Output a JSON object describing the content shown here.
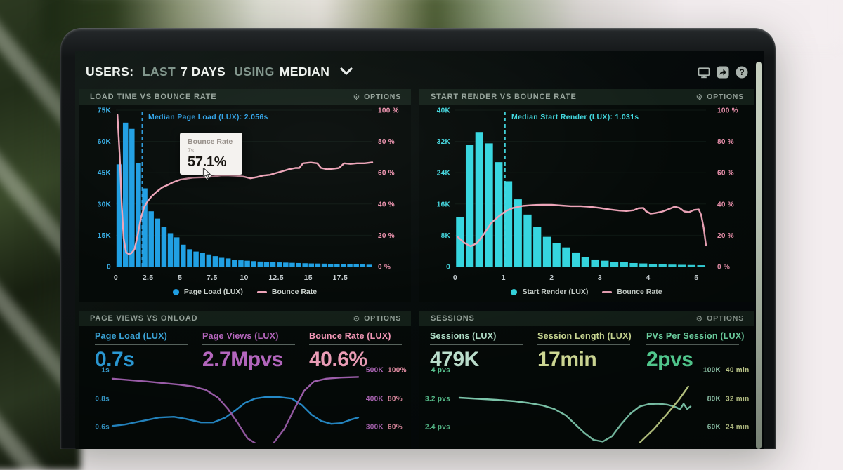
{
  "ui": {
    "options": "OPTIONS"
  },
  "header": {
    "users": "USERS:",
    "range_dim": "LAST",
    "range_bold": "7 DAYS",
    "using_dim": "USING",
    "metric_bold": "MEDIAN",
    "icons": [
      "display-icon",
      "share-icon",
      "help-icon"
    ]
  },
  "tooltip": {
    "label": "Bounce Rate",
    "time": "7s",
    "value": "57.1%"
  },
  "panels": {
    "page_views": {
      "metrics": [
        {
          "label": "Page Load (LUX)",
          "value": "0.7s",
          "label_color": "#3fb0e8",
          "value_color": "#2fa9ea"
        },
        {
          "label": "Page Views (LUX)",
          "value": "2.7Mpvs",
          "label_color": "#c06cc8",
          "value_color": "#c46fce"
        },
        {
          "label": "Bounce Rate (LUX)",
          "value": "40.6%",
          "label_color": "#ff9fc0",
          "value_color": "#ffaac6"
        }
      ]
    },
    "sessions": {
      "metrics": [
        {
          "label": "Sessions (LUX)",
          "value": "479K",
          "label_color": "#bdeed6",
          "value_color": "#cdf4e0"
        },
        {
          "label": "Session Length (LUX)",
          "value": "17min",
          "label_color": "#dceba0",
          "value_color": "#e7f2a6"
        },
        {
          "label": "PVs Per Session (LUX)",
          "value": "2pvs",
          "label_color": "#7aeab4",
          "value_color": "#5ee8a4"
        }
      ]
    }
  },
  "chart_data": [
    {
      "type": "bar",
      "title": "LOAD TIME VS BOUNCE RATE",
      "x_range": [
        0,
        20
      ],
      "x_ticks": [
        0,
        2.5,
        5,
        7.5,
        10,
        12.5,
        15,
        17.5
      ],
      "x_unit": "seconds",
      "left_axis": {
        "ticks": [
          "75K",
          "60K",
          "45K",
          "30K",
          "15K",
          "0"
        ],
        "max": 75,
        "unit": "K users",
        "color": "#39b0e8"
      },
      "right_axis": {
        "ticks": [
          "100 %",
          "80 %",
          "60 %",
          "40 %",
          "20 %",
          "0 %"
        ],
        "max": 100,
        "color": "#f195b1"
      },
      "bars": {
        "name": "Page Load (LUX)",
        "color": "#1f9fe3",
        "step": 0.5,
        "values_k": [
          49,
          69,
          66,
          49.5,
          37.5,
          26.5,
          23,
          19,
          16,
          14,
          10.5,
          8.3,
          7.2,
          6.4,
          5.8,
          5,
          4.2,
          3.9,
          3.3,
          3,
          2.8,
          2.6,
          2.4,
          2.2,
          2.1,
          2,
          1.9,
          1.8,
          1.7,
          1.6,
          1.5,
          1.45,
          1.4,
          1.3,
          1.25,
          1.2,
          1.1,
          1.05,
          1,
          0.9
        ]
      },
      "line": {
        "name": "Bounce Rate",
        "color": "#eda4b8",
        "points": [
          [
            0.12,
            97
          ],
          [
            0.3,
            70
          ],
          [
            0.45,
            40
          ],
          [
            0.6,
            18
          ],
          [
            0.8,
            9
          ],
          [
            1,
            8
          ],
          [
            1.2,
            8.5
          ],
          [
            1.45,
            11
          ],
          [
            1.7,
            20
          ],
          [
            1.95,
            31
          ],
          [
            2.2,
            38
          ],
          [
            2.5,
            42
          ],
          [
            2.8,
            45
          ],
          [
            3.2,
            48
          ],
          [
            3.6,
            50.5
          ],
          [
            4,
            52
          ],
          [
            4.5,
            54
          ],
          [
            5,
            55.5
          ],
          [
            5.5,
            56.2
          ],
          [
            6,
            56.8
          ],
          [
            6.5,
            57
          ],
          [
            7,
            57.1
          ],
          [
            7.6,
            57.6
          ],
          [
            8.2,
            58.2
          ],
          [
            8.8,
            58.2
          ],
          [
            9.4,
            58
          ],
          [
            10,
            57.4
          ],
          [
            10.5,
            56.4
          ],
          [
            11,
            57.2
          ],
          [
            11.5,
            58.2
          ],
          [
            12,
            58.6
          ],
          [
            12.5,
            59.8
          ],
          [
            13,
            61
          ],
          [
            13.5,
            62.2
          ],
          [
            14,
            63
          ],
          [
            14.3,
            63
          ],
          [
            14.6,
            66
          ],
          [
            15.2,
            66.5
          ],
          [
            15.7,
            66
          ],
          [
            16,
            63
          ],
          [
            16.5,
            62.2
          ],
          [
            17,
            62.6
          ],
          [
            17.4,
            63
          ],
          [
            17.8,
            66
          ],
          [
            18.3,
            65.6
          ],
          [
            18.8,
            66
          ],
          [
            19.4,
            66
          ],
          [
            20,
            66.6
          ]
        ]
      },
      "median": {
        "x": 2.056,
        "label": "Median Page Load (LUX): 2.056s",
        "color": "#2fa3e8"
      },
      "legend": [
        "Page Load (LUX)",
        "Bounce Rate"
      ],
      "tooltip_point": {
        "x": 7,
        "value_pct": 57.1
      }
    },
    {
      "type": "bar",
      "title": "START RENDER VS BOUNCE RATE",
      "x_range": [
        0,
        5.2
      ],
      "x_ticks": [
        0,
        1,
        2,
        3,
        4,
        5
      ],
      "x_unit": "seconds",
      "left_axis": {
        "ticks": [
          "40K",
          "32K",
          "24K",
          "16K",
          "8K",
          "0"
        ],
        "max": 40,
        "unit": "K users",
        "color": "#43d6de"
      },
      "right_axis": {
        "ticks": [
          "100 %",
          "80 %",
          "60 %",
          "40 %",
          "20 %",
          "0 %"
        ],
        "max": 100,
        "color": "#f195b1"
      },
      "bars": {
        "name": "Start Render (LUX)",
        "color": "#35d6df",
        "step": 0.2,
        "values_k": [
          12.7,
          31.2,
          34.4,
          31.5,
          26.7,
          21.8,
          17.2,
          13.3,
          10.2,
          7.6,
          6,
          4.9,
          3.6,
          2.5,
          1.8,
          1.5,
          1.2,
          1.1,
          0.9,
          0.8,
          0.7,
          0.6,
          0.5,
          0.45,
          0.4,
          0.35
        ]
      },
      "line": {
        "name": "Bounce Rate",
        "color": "#eda4b8",
        "points": [
          [
            0.05,
            19
          ],
          [
            0.2,
            15
          ],
          [
            0.32,
            13
          ],
          [
            0.45,
            15
          ],
          [
            0.6,
            21
          ],
          [
            0.75,
            28
          ],
          [
            0.9,
            32
          ],
          [
            1.05,
            35.5
          ],
          [
            1.2,
            37.5
          ],
          [
            1.4,
            38.8
          ],
          [
            1.6,
            39.3
          ],
          [
            1.8,
            39.5
          ],
          [
            2,
            39.5
          ],
          [
            2.2,
            39
          ],
          [
            2.4,
            38.6
          ],
          [
            2.6,
            38.6
          ],
          [
            2.8,
            38.2
          ],
          [
            3,
            37.5
          ],
          [
            3.2,
            36.5
          ],
          [
            3.4,
            35.8
          ],
          [
            3.55,
            35.5
          ],
          [
            3.7,
            36
          ],
          [
            3.8,
            37.3
          ],
          [
            3.9,
            37.5
          ],
          [
            3.95,
            35.5
          ],
          [
            4.05,
            33.8
          ],
          [
            4.15,
            34.2
          ],
          [
            4.3,
            35.2
          ],
          [
            4.45,
            37
          ],
          [
            4.55,
            38.3
          ],
          [
            4.65,
            37.5
          ],
          [
            4.75,
            35.2
          ],
          [
            4.85,
            34.8
          ],
          [
            4.95,
            36.2
          ],
          [
            5.05,
            36.5
          ],
          [
            5.1,
            33
          ],
          [
            5.15,
            25
          ],
          [
            5.2,
            13.5
          ]
        ]
      },
      "median": {
        "x": 1.031,
        "label": "Median Start Render (LUX): 1.031s",
        "color": "#41d9e0"
      },
      "legend": [
        "Start Render (LUX)",
        "Bounce Rate"
      ]
    },
    {
      "type": "line",
      "title": "PAGE VIEWS VS ONLOAD",
      "left_axis": {
        "ticks": [
          "1s",
          "0.8s",
          "0.6s"
        ],
        "color": "#3fb0e8",
        "top_value": 1.036,
        "bottom_value": 0.476,
        "unit": "seconds"
      },
      "right_axis_1": {
        "ticks": [
          "500K",
          "400K",
          "300K"
        ],
        "color": "#c473ce",
        "top_value": 517.5,
        "bottom_value": 237.5,
        "unit": "page views"
      },
      "right_axis_2": {
        "ticks": [
          "100%",
          "80%",
          "60%"
        ],
        "color": "#ff9fb8",
        "top_value": 105,
        "bottom_value": 49,
        "unit": "percent"
      },
      "series": [
        {
          "name": "Page Load (LUX)",
          "axis": "left",
          "color": "#2b9fe6",
          "points": [
            [
              0,
              0.6
            ],
            [
              0.05,
              0.61
            ],
            [
              0.12,
              0.635
            ],
            [
              0.19,
              0.66
            ],
            [
              0.25,
              0.665
            ],
            [
              0.3,
              0.65
            ],
            [
              0.36,
              0.625
            ],
            [
              0.41,
              0.625
            ],
            [
              0.46,
              0.66
            ],
            [
              0.5,
              0.71
            ],
            [
              0.54,
              0.765
            ],
            [
              0.58,
              0.795
            ],
            [
              0.62,
              0.805
            ],
            [
              0.68,
              0.805
            ],
            [
              0.73,
              0.795
            ],
            [
              0.77,
              0.75
            ],
            [
              0.81,
              0.68
            ],
            [
              0.85,
              0.635
            ],
            [
              0.89,
              0.615
            ],
            [
              0.93,
              0.62
            ],
            [
              0.97,
              0.645
            ],
            [
              1,
              0.66
            ]
          ]
        },
        {
          "name": "Page Views (LUX)",
          "axis": "right1",
          "color": "#b06ac0",
          "points": [
            [
              0,
              468
            ],
            [
              0.07,
              463
            ],
            [
              0.14,
              458
            ],
            [
              0.21,
              452
            ],
            [
              0.27,
              447
            ],
            [
              0.33,
              440
            ],
            [
              0.38,
              428
            ],
            [
              0.43,
              400
            ],
            [
              0.47,
              360
            ],
            [
              0.51,
              310
            ],
            [
              0.55,
              255
            ],
            [
              0.6,
              228
            ],
            [
              0.65,
              232
            ],
            [
              0.7,
              290
            ],
            [
              0.74,
              360
            ],
            [
              0.78,
              425
            ],
            [
              0.82,
              458
            ],
            [
              0.87,
              468
            ],
            [
              0.93,
              472
            ],
            [
              1,
              474
            ]
          ]
        }
      ]
    },
    {
      "type": "line",
      "title": "SESSIONS",
      "left_axis": {
        "ticks": [
          "4 pvs",
          "3.2 pvs",
          "2.4 pvs"
        ],
        "color": "#63d89f",
        "top_value": 4.14,
        "bottom_value": 1.9,
        "unit": "pvs"
      },
      "right_axis_1": {
        "ticks": [
          "100K",
          "80K",
          "60K"
        ],
        "color": "#aef0cf",
        "top_value": 103.5,
        "bottom_value": 47.5,
        "unit": "sessions"
      },
      "right_axis_2": {
        "ticks": [
          "40 min",
          "32 min",
          "24 min"
        ],
        "color": "#e2efa5",
        "top_value": 41.4,
        "bottom_value": 19,
        "unit": "minutes"
      },
      "series": [
        {
          "name": "Sessions (LUX)",
          "axis": "left",
          "color": "#93e9c9",
          "points": [
            [
              0,
              3.2
            ],
            [
              0.08,
              3.17
            ],
            [
              0.16,
              3.14
            ],
            [
              0.24,
              3.1
            ],
            [
              0.3,
              3.05
            ],
            [
              0.36,
              2.98
            ],
            [
              0.41,
              2.88
            ],
            [
              0.46,
              2.7
            ],
            [
              0.5,
              2.45
            ],
            [
              0.54,
              2.2
            ],
            [
              0.58,
              2
            ],
            [
              0.62,
              1.95
            ],
            [
              0.66,
              2.1
            ],
            [
              0.7,
              2.45
            ],
            [
              0.74,
              2.75
            ],
            [
              0.78,
              2.95
            ],
            [
              0.82,
              3.02
            ],
            [
              0.86,
              3.03
            ],
            [
              0.9,
              3
            ],
            [
              0.93,
              2.95
            ],
            [
              0.955,
              2.87
            ],
            [
              0.97,
              3.03
            ],
            [
              0.985,
              2.88
            ],
            [
              1,
              2.95
            ]
          ]
        },
        {
          "name": "Session Length (LUX)",
          "axis": "right2",
          "color": "#dff09c",
          "points": [
            [
              0.78,
              19.2
            ],
            [
              0.84,
              23
            ],
            [
              0.9,
              27.5
            ],
            [
              0.95,
              31.5
            ],
            [
              0.99,
              35.2
            ]
          ]
        }
      ]
    }
  ]
}
